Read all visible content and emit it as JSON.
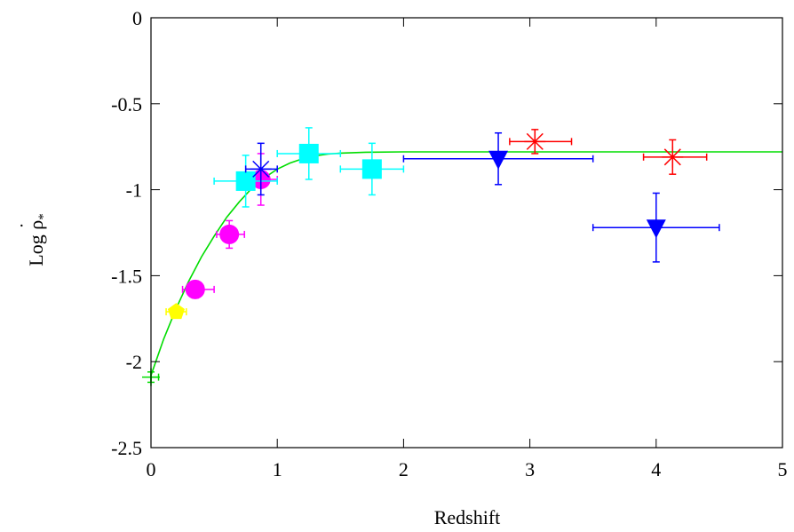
{
  "chart_data": {
    "type": "scatter",
    "title": "",
    "xlabel": "Redshift",
    "ylabel": "Log ρ̇*",
    "ylabel_main": "Log ρ",
    "ylabel_dot": "˙",
    "ylabel_sub": "*",
    "xlim": [
      0,
      5
    ],
    "ylim": [
      -2.5,
      0
    ],
    "grid": false,
    "legend": "none",
    "xticks": [
      0,
      1,
      2,
      3,
      4,
      5
    ],
    "xtick_labels": [
      "0",
      "1",
      "2",
      "3",
      "4",
      "5"
    ],
    "yticks": [
      0,
      -0.5,
      -1,
      -1.5,
      -2,
      -2.5
    ],
    "ytick_labels": [
      "0",
      "-0.5",
      "-1",
      "-1.5",
      "-2",
      "-2.5"
    ],
    "fit_curve": {
      "color": "#00dd00",
      "description_values": {
        "z_start": 0,
        "log_rho_at_0": -2.08,
        "plateau": -0.78
      },
      "points": [
        [
          0.0,
          -2.08
        ],
        [
          0.1,
          -1.87
        ],
        [
          0.2,
          -1.69
        ],
        [
          0.3,
          -1.53
        ],
        [
          0.4,
          -1.39
        ],
        [
          0.5,
          -1.27
        ],
        [
          0.6,
          -1.16
        ],
        [
          0.7,
          -1.07
        ],
        [
          0.8,
          -0.99
        ],
        [
          0.9,
          -0.93
        ],
        [
          1.0,
          -0.88
        ],
        [
          1.1,
          -0.845
        ],
        [
          1.2,
          -0.82
        ],
        [
          1.3,
          -0.803
        ],
        [
          1.4,
          -0.793
        ],
        [
          1.5,
          -0.787
        ],
        [
          1.7,
          -0.782
        ],
        [
          2.0,
          -0.78
        ],
        [
          2.5,
          -0.78
        ],
        [
          3.0,
          -0.78
        ],
        [
          3.5,
          -0.78
        ],
        [
          4.0,
          -0.78
        ],
        [
          4.5,
          -0.78
        ],
        [
          5.0,
          -0.78
        ]
      ]
    },
    "series": [
      {
        "marker": "plus",
        "color": "#00dd00",
        "bar_color": "#00dd00",
        "points": [
          {
            "x": 0.0,
            "y": -2.09,
            "xerr": [
              0.0,
              0.06
            ],
            "yerr": [
              0.03,
              0.03
            ]
          }
        ]
      },
      {
        "marker": "pentagon",
        "color": "#ffff00",
        "bar_color": "#ffff00",
        "points": [
          {
            "x": 0.2,
            "y": -1.71,
            "xerr": [
              0.08,
              0.08
            ],
            "yerr": [
              0.02,
              0.02
            ]
          }
        ]
      },
      {
        "marker": "circle",
        "color": "#ff00ff",
        "bar_color": "#ff00ff",
        "points": [
          {
            "x": 0.35,
            "y": -1.58,
            "xerr": [
              0.1,
              0.15
            ],
            "yerr": [
              0.05,
              0.05
            ]
          },
          {
            "x": 0.62,
            "y": -1.26,
            "xerr": [
              0.1,
              0.12
            ],
            "yerr": [
              0.08,
              0.08
            ]
          },
          {
            "x": 0.87,
            "y": -0.94,
            "xerr": [
              0.12,
              0.13
            ],
            "yerr": [
              0.15,
              0.15
            ]
          }
        ]
      },
      {
        "marker": "square",
        "color": "#00ffff",
        "bar_color": "#00ffff",
        "points": [
          {
            "x": 0.75,
            "y": -0.95,
            "xerr": [
              0.25,
              0.25
            ],
            "yerr": [
              0.15,
              0.15
            ]
          },
          {
            "x": 1.25,
            "y": -0.79,
            "xerr": [
              0.25,
              0.25
            ],
            "yerr": [
              0.15,
              0.15
            ]
          },
          {
            "x": 1.75,
            "y": -0.88,
            "xerr": [
              0.25,
              0.25
            ],
            "yerr": [
              0.15,
              0.15
            ]
          }
        ]
      },
      {
        "marker": "asterisk",
        "color": "#0000ff",
        "bar_color": "#0000ff",
        "points": [
          {
            "x": 0.87,
            "y": -0.88,
            "xerr": [
              0.12,
              0.13
            ],
            "yerr": [
              0.15,
              0.15
            ]
          }
        ]
      },
      {
        "marker": "triangle-down",
        "color": "#0000ff",
        "bar_color": "#0000ff",
        "points": [
          {
            "x": 2.75,
            "y": -0.82,
            "xerr": [
              0.75,
              0.75
            ],
            "yerr": [
              0.15,
              0.15
            ]
          },
          {
            "x": 4.0,
            "y": -1.22,
            "xerr": [
              0.5,
              0.5
            ],
            "yerr": [
              0.2,
              0.2
            ]
          }
        ]
      },
      {
        "marker": "asterisk",
        "color": "#ff0000",
        "bar_color": "#ff0000",
        "points": [
          {
            "x": 3.04,
            "y": -0.72,
            "xerr": [
              0.2,
              0.29
            ],
            "yerr": [
              0.07,
              0.07
            ]
          },
          {
            "x": 4.13,
            "y": -0.81,
            "xerr": [
              0.23,
              0.27
            ],
            "yerr": [
              0.1,
              0.1
            ]
          }
        ]
      }
    ]
  }
}
